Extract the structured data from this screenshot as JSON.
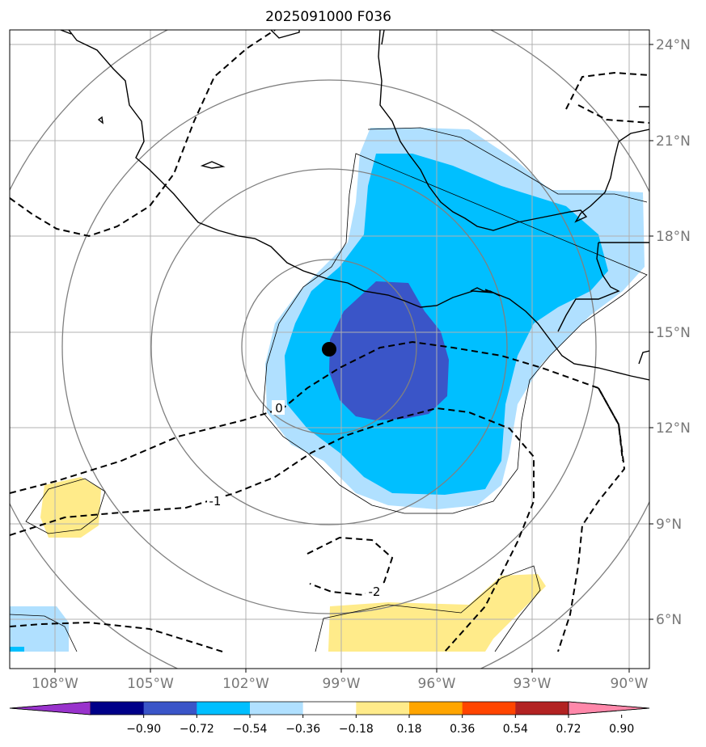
{
  "title": "2025091000 F036",
  "map": {
    "lon_labels": [
      "108°W",
      "105°W",
      "102°W",
      "99°W",
      "96°W",
      "93°W",
      "90°W"
    ],
    "lat_labels": [
      "24°N",
      "21°N",
      "18°N",
      "15°N",
      "12°N",
      "9°N",
      "6°N"
    ],
    "contour_labels": [
      "0",
      "-1",
      "-2"
    ],
    "storm_marker": "storm-center"
  },
  "colorbar": {
    "tick_labels": [
      "−0.90",
      "−0.72",
      "−0.54",
      "−0.36",
      "−0.18",
      "0.18",
      "0.36",
      "0.54",
      "0.72",
      "0.90"
    ],
    "colors": [
      "#9933cc",
      "#000088",
      "#3a55c8",
      "#00bfff",
      "#b0e0ff",
      "#ffffff",
      "#ffeb8a",
      "#ffa500",
      "#ff4500",
      "#b22222",
      "#ff88aa"
    ]
  },
  "palette": {
    "light_blue": "#b0e0ff",
    "mid_blue": "#00bfff",
    "dark_blue": "#3a55c8",
    "yellow": "#ffeb8a",
    "grid": "#b0b0b0",
    "range_ring": "#808080"
  }
}
